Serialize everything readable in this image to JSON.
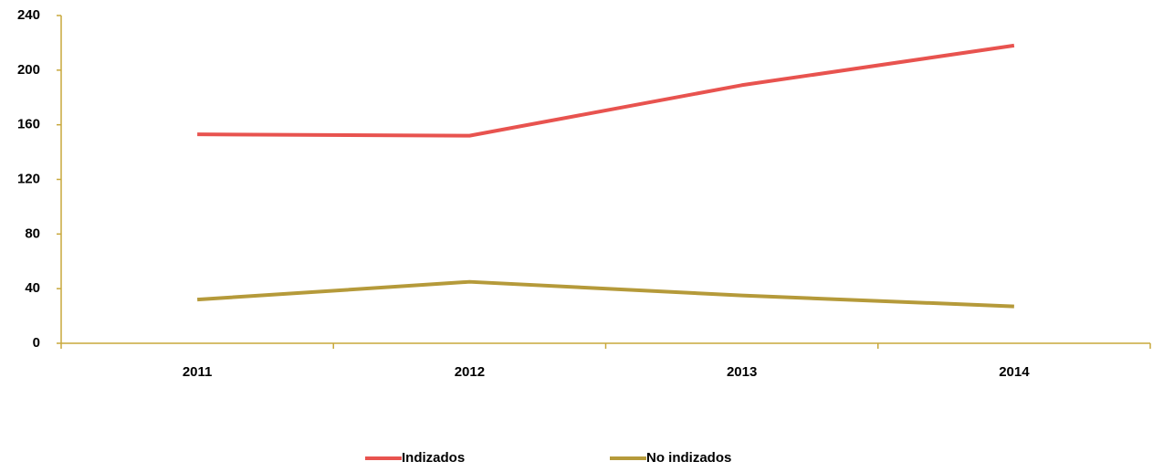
{
  "chart_data": {
    "type": "line",
    "categories": [
      "2011",
      "2012",
      "2013",
      "2014"
    ],
    "series": [
      {
        "name": "Indizados",
        "color": "#e8534f",
        "values": [
          153,
          152,
          189,
          218
        ]
      },
      {
        "name": "No indizados",
        "color": "#b59a3a",
        "values": [
          32,
          45,
          35,
          27
        ]
      }
    ],
    "ylim": [
      0,
      240
    ],
    "yticks": [
      0,
      40,
      80,
      120,
      160,
      200,
      240
    ],
    "axis_color": "#c8a83c",
    "legend": "bottom"
  }
}
